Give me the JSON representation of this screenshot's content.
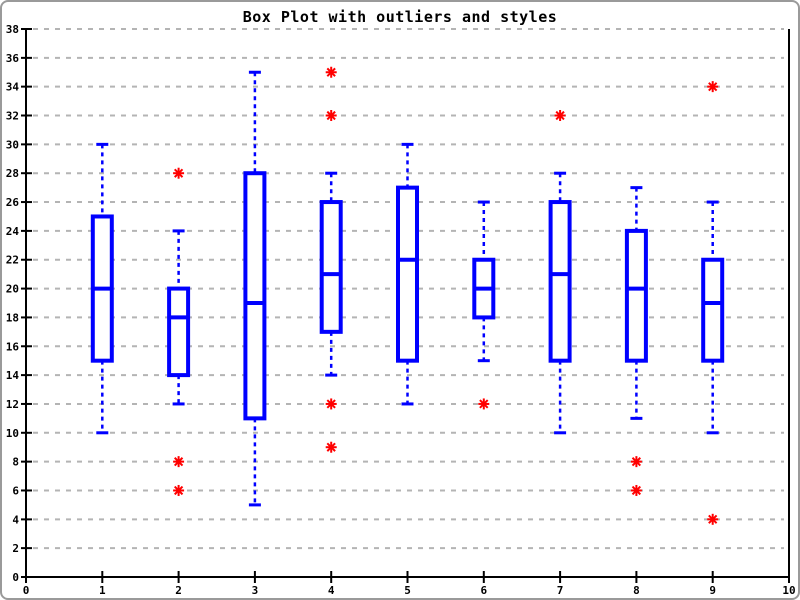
{
  "window": {
    "background": "#ffffff",
    "border_color": "#9a9a9a"
  },
  "chart_data": {
    "type": "boxplot",
    "title": "Box Plot with outliers and styles",
    "xlabel": "",
    "ylabel": "",
    "xlim": [
      0,
      10
    ],
    "ylim": [
      0,
      38
    ],
    "x_tick_step": 1,
    "y_tick_step": 2,
    "grid": {
      "horizontal": true,
      "vertical": false,
      "style": "dashed",
      "color": "#b4b4b4"
    },
    "legend": null,
    "styles": {
      "box_color": "#0000ff",
      "median_color": "#0000ff",
      "whisker_style": "dashed",
      "whisker_color": "#0000ff",
      "outlier_marker": "asterisk",
      "outlier_color": "#ff0000",
      "axis_color": "#000000"
    },
    "series": [
      {
        "x": 1,
        "whisker_low": 10,
        "q1": 15,
        "median": 20,
        "q3": 25,
        "whisker_high": 30,
        "outliers": []
      },
      {
        "x": 2,
        "whisker_low": 12,
        "q1": 14,
        "median": 18,
        "q3": 20,
        "whisker_high": 24,
        "outliers": [
          28,
          8,
          6
        ]
      },
      {
        "x": 3,
        "whisker_low": 5,
        "q1": 11,
        "median": 19,
        "q3": 28,
        "whisker_high": 35,
        "outliers": []
      },
      {
        "x": 4,
        "whisker_low": 14,
        "q1": 17,
        "median": 21,
        "q3": 26,
        "whisker_high": 28,
        "outliers": [
          35,
          32,
          12,
          9
        ]
      },
      {
        "x": 5,
        "whisker_low": 12,
        "q1": 15,
        "median": 22,
        "q3": 27,
        "whisker_high": 30,
        "outliers": []
      },
      {
        "x": 6,
        "whisker_low": 15,
        "q1": 18,
        "median": 20,
        "q3": 22,
        "whisker_high": 26,
        "outliers": [
          12
        ]
      },
      {
        "x": 7,
        "whisker_low": 10,
        "q1": 15,
        "median": 21,
        "q3": 26,
        "whisker_high": 28,
        "outliers": [
          32
        ]
      },
      {
        "x": 8,
        "whisker_low": 11,
        "q1": 15,
        "median": 20,
        "q3": 24,
        "whisker_high": 27,
        "outliers": [
          8,
          6
        ]
      },
      {
        "x": 9,
        "whisker_low": 10,
        "q1": 15,
        "median": 19,
        "q3": 22,
        "whisker_high": 26,
        "outliers": [
          34,
          4
        ]
      }
    ]
  }
}
